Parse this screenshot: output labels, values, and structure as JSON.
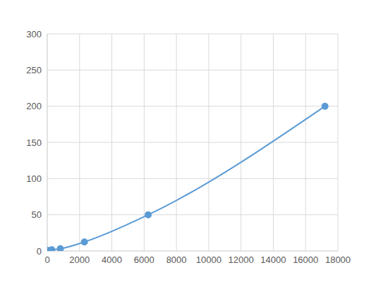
{
  "chart_data": {
    "type": "line",
    "x": [
      50,
      280,
      810,
      2300,
      6250,
      17200
    ],
    "values": [
      0.8,
      1.6,
      3.1,
      12.5,
      50,
      200
    ],
    "color": "#5b9bd5",
    "marker": "circle",
    "line_style": "solid",
    "xlim": [
      0,
      18000
    ],
    "xticks": [
      0,
      2000,
      4000,
      6000,
      8000,
      10000,
      12000,
      14000,
      16000,
      18000
    ],
    "ylim": [
      0,
      300
    ],
    "yticks": [
      0,
      50,
      100,
      150,
      200,
      250,
      300
    ],
    "grid": true
  }
}
